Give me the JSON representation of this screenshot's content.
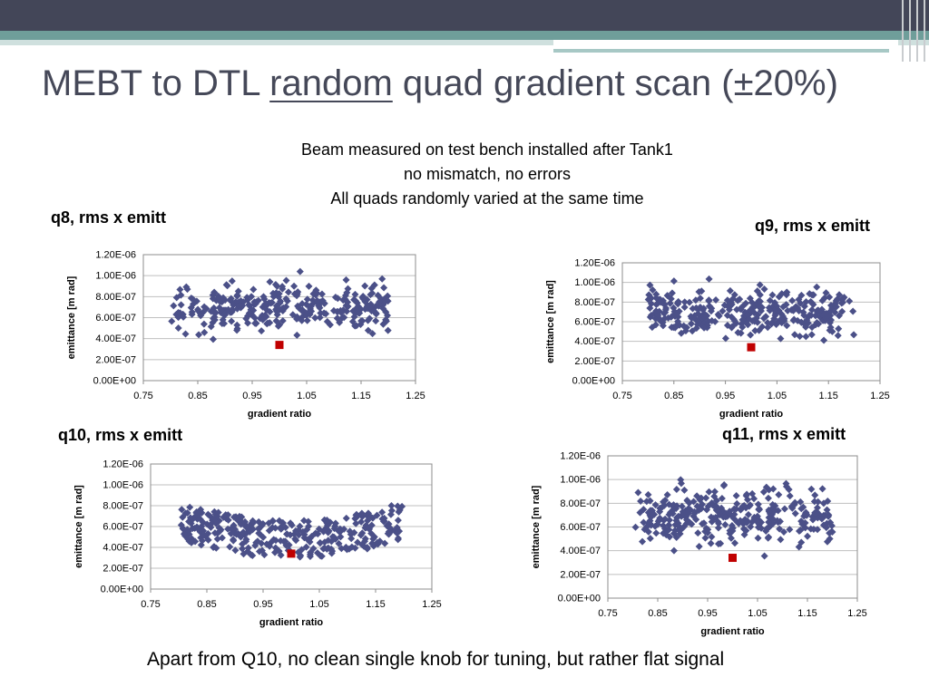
{
  "slide": {
    "title_pre": "MEBT to DTL ",
    "title_underlined": "random",
    "title_post": " quad gradient scan (±20%)",
    "subtitle_lines": [
      "Beam measured on test bench installed after Tank1",
      "no mismatch, no errors",
      "All quads randomly varied at the same time"
    ],
    "footer": "Apart from Q10, no clean single knob for tuning, but rather flat signal"
  },
  "colors": {
    "header_bar": "#434658",
    "accent_teal": "#6f9e9a",
    "title_text": "#454858",
    "marker": "#4b5088",
    "highlight_marker": "#c00000",
    "gridline": "#bfbfbf"
  },
  "chart_data": [
    {
      "type": "scatter",
      "title": "q8, rms x emitt",
      "xlabel": "gradient ratio",
      "ylabel": "emittance [m rad]",
      "xlim": [
        0.75,
        1.25
      ],
      "ylim": [
        0,
        1.2e-06
      ],
      "x_ticks": [
        "0.75",
        "0.85",
        "0.95",
        "1.05",
        "1.15",
        "1.25"
      ],
      "y_ticks": [
        "0.00E+00",
        "2.00E-07",
        "4.00E-07",
        "6.00E-07",
        "8.00E-07",
        "1.00E-06",
        "1.20E-06"
      ],
      "grid": true,
      "legend": "none",
      "pattern": "flat",
      "series_x_range": [
        0.8,
        1.2
      ],
      "series_y_range": [
        3e-07,
        1.09e-06
      ],
      "n_points": 320,
      "seed": 11,
      "highlight": {
        "x": 1.0,
        "y": 3.4e-07
      }
    },
    {
      "type": "scatter",
      "title": "q9, rms x emitt",
      "xlabel": "gradient ratio",
      "ylabel": "emittance [m rad]",
      "xlim": [
        0.75,
        1.25
      ],
      "ylim": [
        0,
        1.2e-06
      ],
      "x_ticks": [
        "0.75",
        "0.85",
        "0.95",
        "1.05",
        "1.15",
        "1.25"
      ],
      "y_ticks": [
        "0.00E+00",
        "2.00E-07",
        "4.00E-07",
        "6.00E-07",
        "8.00E-07",
        "1.00E-06",
        "1.20E-06"
      ],
      "grid": true,
      "legend": "none",
      "pattern": "flat",
      "series_x_range": [
        0.8,
        1.2
      ],
      "series_y_range": [
        3e-07,
        1.09e-06
      ],
      "n_points": 320,
      "seed": 23,
      "highlight": {
        "x": 1.0,
        "y": 3.4e-07
      }
    },
    {
      "type": "scatter",
      "title": "q10, rms x emitt",
      "xlabel": "gradient ratio",
      "ylabel": "emittance [m rad]",
      "xlim": [
        0.75,
        1.25
      ],
      "ylim": [
        0,
        1.2e-06
      ],
      "x_ticks": [
        "0.75",
        "0.85",
        "0.95",
        "1.05",
        "1.15",
        "1.25"
      ],
      "y_ticks": [
        "0.00E+00",
        "2.00E-07",
        "4.00E-07",
        "6.00E-07",
        "8.00E-07",
        "1.00E-06",
        "1.20E-06"
      ],
      "grid": true,
      "legend": "none",
      "pattern": "dip",
      "series_x_range": [
        0.8,
        1.2
      ],
      "series_y_range": [
        3e-07,
        1.09e-06
      ],
      "n_points": 320,
      "seed": 37,
      "highlight": {
        "x": 1.0,
        "y": 3.4e-07
      }
    },
    {
      "type": "scatter",
      "title": "q11, rms x emitt",
      "xlabel": "gradient ratio",
      "ylabel": "emittance [m rad]",
      "xlim": [
        0.75,
        1.25
      ],
      "ylim": [
        0,
        1.2e-06
      ],
      "x_ticks": [
        "0.75",
        "0.85",
        "0.95",
        "1.05",
        "1.15",
        "1.25"
      ],
      "y_ticks": [
        "0.00E+00",
        "2.00E-07",
        "4.00E-07",
        "6.00E-07",
        "8.00E-07",
        "1.00E-06",
        "1.20E-06"
      ],
      "grid": true,
      "legend": "none",
      "pattern": "flat",
      "series_x_range": [
        0.8,
        1.2
      ],
      "series_y_range": [
        3e-07,
        1.09e-06
      ],
      "n_points": 320,
      "seed": 53,
      "highlight": {
        "x": 1.0,
        "y": 3.4e-07
      }
    }
  ]
}
